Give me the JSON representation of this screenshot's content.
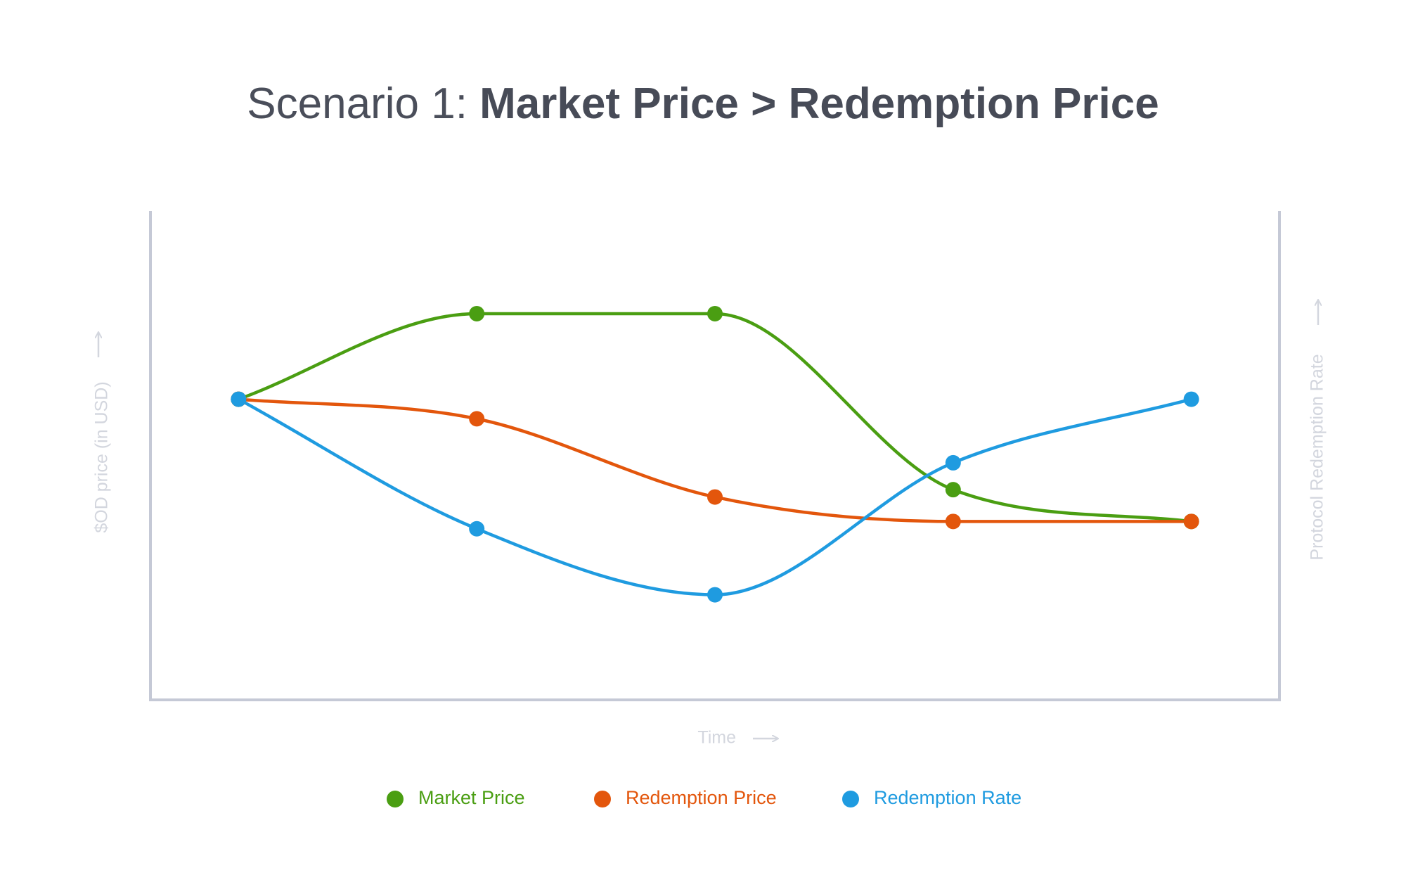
{
  "title": {
    "prefix": "Scenario 1: ",
    "emphasis": "Market Price > Redemption Price"
  },
  "colors": {
    "axis": "#c5c9d6",
    "axis_label": "#d3d6de",
    "market_price": "#4a9e12",
    "redemption_price": "#e3560c",
    "redemption_rate": "#1f9be0"
  },
  "chart_data": {
    "type": "line",
    "title": "Scenario 1: Market Price > Redemption Price",
    "xlabel": "Time",
    "ylabel_left": "$OD price (in USD)",
    "ylabel_right": "Protocol Redemption Rate",
    "x": [
      0,
      1,
      2,
      3,
      4
    ],
    "xlim": [
      -0.37,
      4.37
    ],
    "ylim": [
      0,
      100
    ],
    "smooth": true,
    "grid": false,
    "legend_position": "bottom-center",
    "series": [
      {
        "name": "Market Price",
        "color": "#4a9e12",
        "values": [
          61.5,
          79.0,
          79.0,
          43.0,
          36.5
        ]
      },
      {
        "name": "Redemption Price",
        "color": "#e3560c",
        "values": [
          61.5,
          57.5,
          41.5,
          36.5,
          36.5
        ]
      },
      {
        "name": "Redemption Rate",
        "color": "#1f9be0",
        "values": [
          61.5,
          35.0,
          21.5,
          48.5,
          61.5
        ]
      }
    ]
  }
}
